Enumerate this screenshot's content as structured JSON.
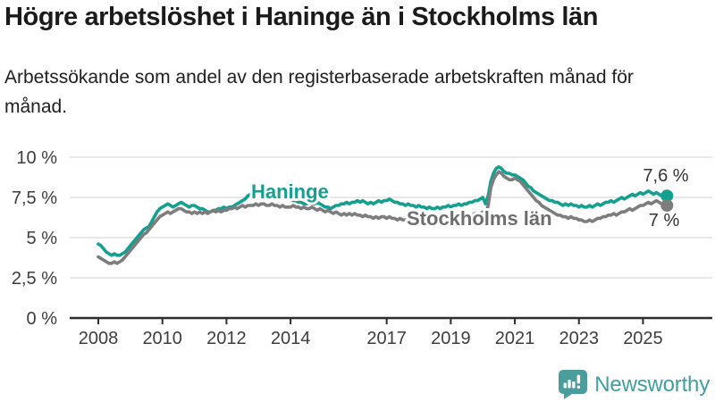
{
  "header": {
    "title": "Högre arbetslöshet i Haninge än i Stockholms län",
    "subtitle": "Arbetssökande som andel av den registerbaserade arbetskraften månad för månad."
  },
  "footer": {
    "brand": "Newsworthy",
    "logo_icon": "newsworthy-speech-bubble-bar-chart-icon"
  },
  "colors": {
    "haninge_line": "#14a090",
    "stockholm_line": "#7d7d7d",
    "stockholm_label": "#6e6e6e",
    "grid": "#dbdbdb",
    "axis": "#2d2d2d",
    "tick_text": "#3d3d3d",
    "brand_teal": "#3f9fa0",
    "logo_bg": "#4a9c9d"
  },
  "chart_data": {
    "type": "line",
    "title": "Högre arbetslöshet i Haninge än i Stockholms län",
    "ylim": [
      0,
      10
    ],
    "grid": true,
    "legend_position": "inline-labels",
    "y_axis": {
      "ticks": [
        0,
        2.5,
        5,
        7.5,
        10
      ],
      "labels": [
        "0 %",
        "2,5 %",
        "5 %",
        "7,5 %",
        "10 %"
      ]
    },
    "x_axis": {
      "tick_years": [
        2008,
        2010,
        2012,
        2014,
        2017,
        2019,
        2021,
        2023,
        2025
      ],
      "tick_labels": [
        "2008",
        "2010",
        "2012",
        "2014",
        "2017",
        "2019",
        "2021",
        "2023",
        "2025"
      ],
      "range": [
        2008.0,
        2025.75
      ]
    },
    "unit": "%",
    "frequency": "monthly",
    "series": [
      {
        "id": "haninge",
        "name": "Haninge",
        "color": "#14a090",
        "end_value": 7.6,
        "end_label": "7,6 %",
        "values_by_year": {
          "2008": [
            4.6,
            4.5,
            4.3,
            4.1,
            4.0,
            3.9,
            4.0,
            3.9,
            3.9,
            4.0,
            4.1,
            4.3
          ],
          "2009": [
            4.5,
            4.7,
            4.9,
            5.1,
            5.3,
            5.5,
            5.6,
            5.7,
            6.0,
            6.3,
            6.6,
            6.8
          ],
          "2010": [
            6.9,
            7.0,
            7.1,
            7.0,
            6.9,
            7.0,
            7.1,
            7.2,
            7.1,
            7.0,
            6.9,
            7.0
          ],
          "2011": [
            7.0,
            6.9,
            6.8,
            6.8,
            6.7,
            6.6,
            6.6,
            6.7,
            6.7,
            6.8,
            6.8,
            6.9
          ],
          "2012": [
            6.8,
            6.9,
            6.9,
            7.0,
            7.1,
            7.2,
            7.3,
            7.4,
            7.6,
            7.7,
            7.8,
            7.9
          ],
          "2013": [
            8.0,
            8.0,
            7.9,
            7.9,
            7.8,
            7.8,
            7.7,
            7.6,
            7.6,
            7.5,
            7.5,
            7.4
          ],
          "2014": [
            7.4,
            7.3,
            7.3,
            7.2,
            7.2,
            7.1,
            7.1,
            7.2,
            7.1,
            7.1,
            7.2,
            7.1
          ],
          "2015": [
            7.0,
            6.9,
            6.9,
            6.8,
            6.9,
            7.0,
            7.0,
            7.1,
            7.1,
            7.2,
            7.1,
            7.2
          ],
          "2016": [
            7.2,
            7.3,
            7.2,
            7.3,
            7.2,
            7.1,
            7.2,
            7.1,
            7.2,
            7.3,
            7.2,
            7.3
          ],
          "2017": [
            7.3,
            7.4,
            7.3,
            7.2,
            7.2,
            7.1,
            7.1,
            7.0,
            7.1,
            7.0,
            7.0,
            6.9
          ],
          "2018": [
            7.0,
            6.9,
            6.9,
            6.8,
            6.9,
            6.8,
            6.8,
            6.9,
            6.8,
            6.9,
            6.9,
            7.0
          ],
          "2019": [
            6.9,
            7.0,
            7.0,
            7.1,
            7.0,
            7.1,
            7.1,
            7.2,
            7.2,
            7.3,
            7.3,
            7.4
          ],
          "2020": [
            7.5,
            7.1,
            7.6,
            8.5,
            9.0,
            9.3,
            9.4,
            9.3,
            9.1,
            9.0,
            9.0,
            8.9
          ],
          "2021": [
            8.9,
            8.8,
            8.7,
            8.6,
            8.4,
            8.2,
            8.1,
            7.9,
            7.8,
            7.7,
            7.6,
            7.5
          ],
          "2022": [
            7.4,
            7.3,
            7.3,
            7.2,
            7.2,
            7.1,
            7.0,
            7.1,
            7.0,
            7.1,
            7.0,
            7.0
          ],
          "2023": [
            6.9,
            7.0,
            6.9,
            6.9,
            7.0,
            6.9,
            7.0,
            7.1,
            7.0,
            7.1,
            7.2,
            7.2
          ],
          "2024": [
            7.3,
            7.2,
            7.3,
            7.4,
            7.5,
            7.4,
            7.5,
            7.6,
            7.7,
            7.6,
            7.7,
            7.8
          ],
          "2025": [
            7.7,
            7.8,
            7.9,
            7.8,
            7.7,
            7.8,
            7.7,
            7.6,
            7.5,
            7.6
          ]
        }
      },
      {
        "id": "stockholms-lan",
        "name": "Stockholms län",
        "color": "#7d7d7d",
        "end_value": 7.0,
        "end_label": "7 %",
        "values_by_year": {
          "2008": [
            3.8,
            3.7,
            3.6,
            3.5,
            3.4,
            3.4,
            3.5,
            3.4,
            3.5,
            3.6,
            3.8,
            4.0
          ],
          "2009": [
            4.2,
            4.4,
            4.6,
            4.8,
            5.0,
            5.2,
            5.3,
            5.5,
            5.7,
            5.9,
            6.1,
            6.3
          ],
          "2010": [
            6.4,
            6.5,
            6.6,
            6.5,
            6.6,
            6.7,
            6.8,
            6.8,
            6.7,
            6.6,
            6.6,
            6.5
          ],
          "2011": [
            6.6,
            6.5,
            6.6,
            6.5,
            6.6,
            6.5,
            6.6,
            6.7,
            6.6,
            6.7,
            6.6,
            6.7
          ],
          "2012": [
            6.7,
            6.8,
            6.8,
            6.9,
            6.8,
            6.9,
            7.0,
            6.9,
            7.0,
            7.0,
            7.0,
            7.1
          ],
          "2013": [
            7.0,
            7.1,
            7.1,
            7.0,
            7.0,
            7.1,
            7.0,
            7.0,
            6.9,
            7.0,
            6.9,
            6.9
          ],
          "2014": [
            6.9,
            7.0,
            6.9,
            6.9,
            6.8,
            6.9,
            6.8,
            6.8,
            6.9,
            6.8,
            6.7,
            6.8
          ],
          "2015": [
            6.7,
            6.6,
            6.7,
            6.6,
            6.5,
            6.6,
            6.5,
            6.4,
            6.5,
            6.4,
            6.5,
            6.4
          ],
          "2016": [
            6.5,
            6.4,
            6.4,
            6.3,
            6.4,
            6.3,
            6.3,
            6.2,
            6.3,
            6.2,
            6.3,
            6.3
          ],
          "2017": [
            6.2,
            6.3,
            6.2,
            6.2,
            6.1,
            6.2,
            6.1,
            6.1,
            6.0,
            6.1,
            6.0,
            6.1
          ],
          "2018": [
            6.0,
            6.1,
            6.0,
            6.0,
            6.1,
            6.0,
            6.1,
            6.1,
            6.2,
            6.1,
            6.2,
            6.2
          ],
          "2019": [
            6.2,
            6.3,
            6.2,
            6.3,
            6.3,
            6.4,
            6.3,
            6.4,
            6.4,
            6.5,
            6.4,
            6.5
          ],
          "2020": [
            6.6,
            6.4,
            7.0,
            8.1,
            8.6,
            8.9,
            9.1,
            9.0,
            8.8,
            8.7,
            8.6,
            8.6
          ],
          "2021": [
            8.7,
            8.6,
            8.5,
            8.3,
            8.1,
            7.9,
            7.7,
            7.5,
            7.3,
            7.2,
            7.0,
            6.9
          ],
          "2022": [
            6.8,
            6.7,
            6.6,
            6.5,
            6.4,
            6.4,
            6.3,
            6.3,
            6.2,
            6.3,
            6.2,
            6.2
          ],
          "2023": [
            6.1,
            6.1,
            6.0,
            6.0,
            6.1,
            6.0,
            6.1,
            6.2,
            6.2,
            6.3,
            6.3,
            6.4
          ],
          "2024": [
            6.4,
            6.5,
            6.4,
            6.5,
            6.6,
            6.6,
            6.7,
            6.8,
            6.7,
            6.8,
            6.9,
            7.0
          ],
          "2025": [
            7.0,
            7.1,
            7.2,
            7.1,
            7.2,
            7.3,
            7.2,
            7.1,
            6.9,
            7.0
          ]
        }
      }
    ]
  }
}
